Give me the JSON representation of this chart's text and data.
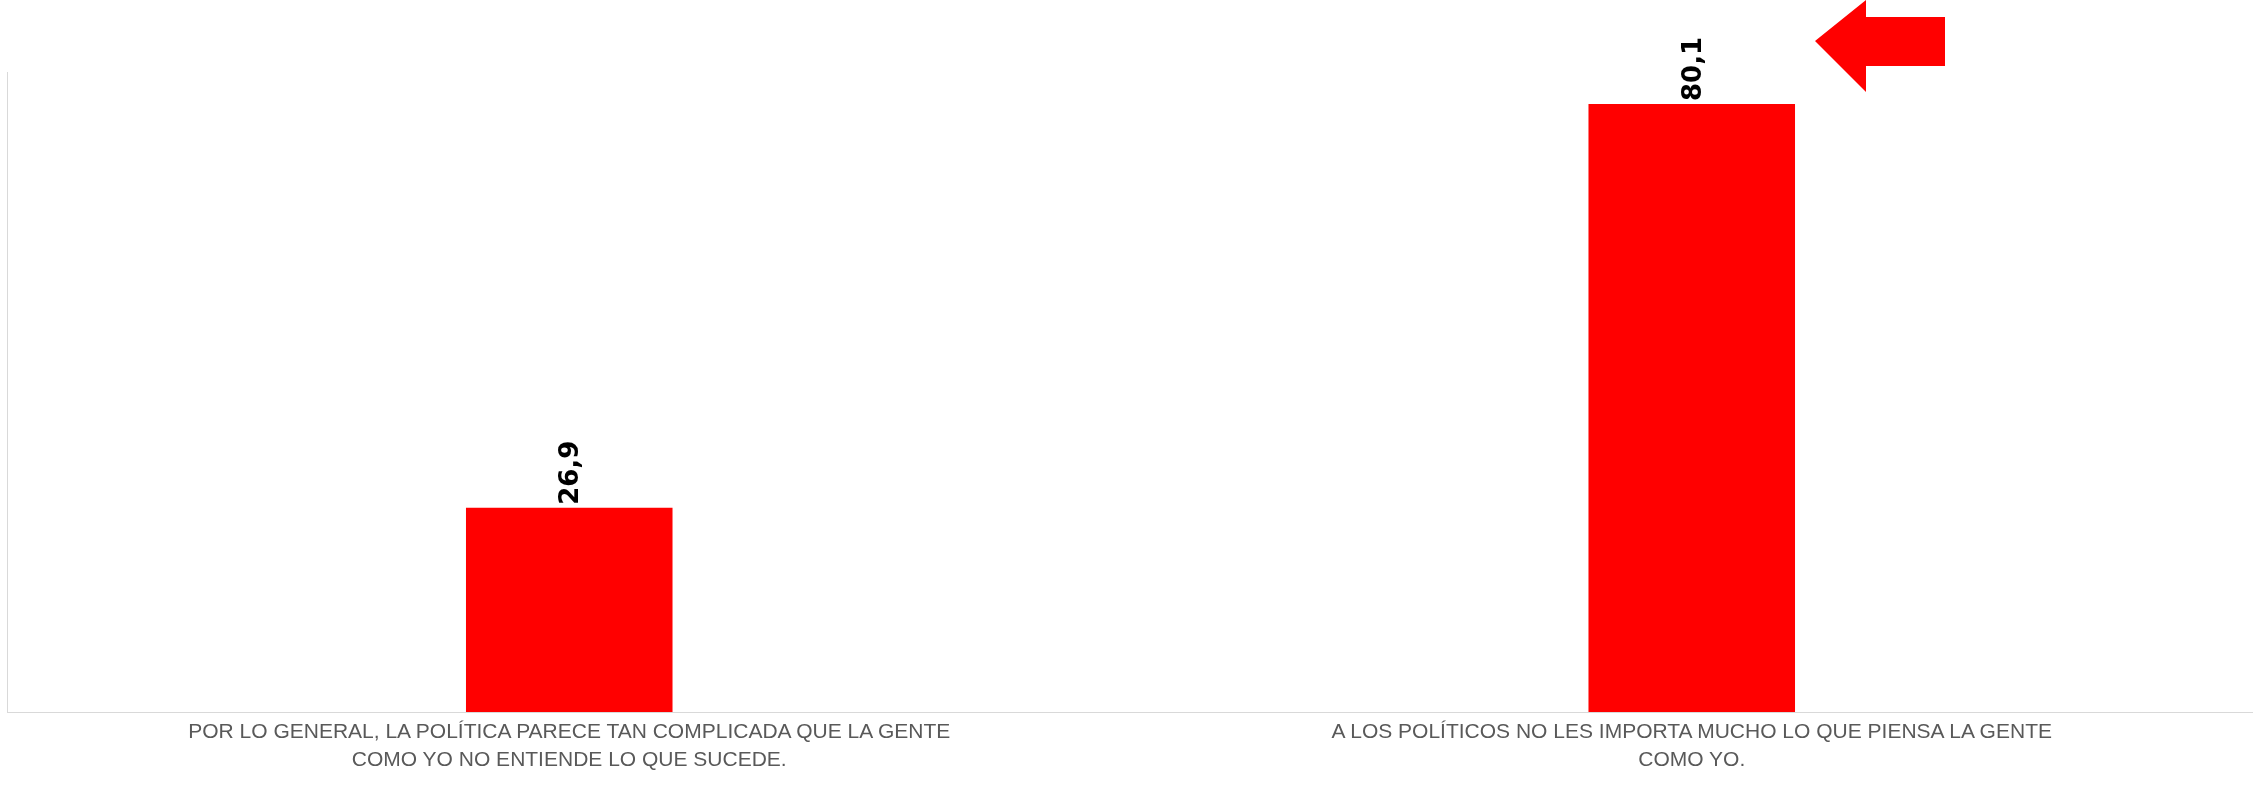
{
  "chart_data": {
    "type": "bar",
    "categories": [
      "POR LO GENERAL, LA POLÍTICA PARECE TAN COMPLICADA QUE LA GENTE COMO YO NO ENTIENDE LO QUE SUCEDE.",
      "A LOS POLÍTICOS NO LES IMPORTA MUCHO LO QUE PIENSA LA GENTE COMO YO."
    ],
    "values": [
      26.9,
      80.1
    ],
    "value_labels": [
      "26,9",
      "80,1"
    ],
    "color": "#ff0000",
    "tick_labels": "x"
  }
}
